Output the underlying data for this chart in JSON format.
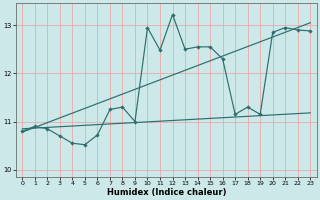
{
  "title": "",
  "xlabel": "Humidex (Indice chaleur)",
  "bg_color": "#cce8e8",
  "grid_color": "#e8aaaa",
  "line_color": "#2d6e6e",
  "xlim": [
    -0.5,
    23.5
  ],
  "ylim": [
    9.85,
    13.45
  ],
  "yticks": [
    10,
    11,
    12,
    13
  ],
  "xticks": [
    0,
    1,
    2,
    3,
    4,
    5,
    6,
    7,
    8,
    9,
    10,
    11,
    12,
    13,
    14,
    15,
    16,
    17,
    18,
    19,
    20,
    21,
    22,
    23
  ],
  "series1_x": [
    0,
    1,
    2,
    3,
    4,
    5,
    6,
    7,
    8,
    9,
    10,
    11,
    12,
    13,
    14,
    15,
    16,
    17,
    18,
    19,
    20,
    21,
    22,
    23
  ],
  "series1_y": [
    10.8,
    10.9,
    10.85,
    10.7,
    10.55,
    10.52,
    10.72,
    11.25,
    11.3,
    11.0,
    12.95,
    12.48,
    13.22,
    12.5,
    12.55,
    12.55,
    12.3,
    11.15,
    11.3,
    11.15,
    12.85,
    12.95,
    12.9,
    12.88
  ],
  "trend1_x": [
    0,
    23
  ],
  "trend1_y": [
    10.78,
    13.05
  ],
  "trend2_x": [
    0,
    23
  ],
  "trend2_y": [
    10.85,
    11.18
  ]
}
